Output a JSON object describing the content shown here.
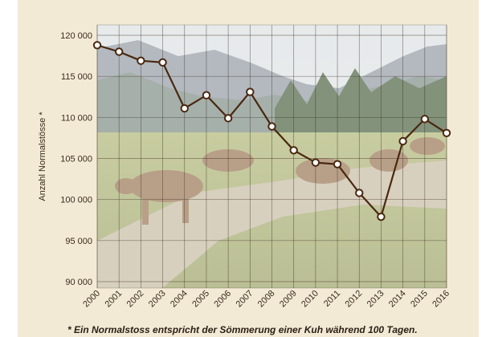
{
  "chart_data": {
    "type": "line",
    "ylabel": "Anzahl Normalstösse *",
    "xlabel": "",
    "ylim": [
      90000,
      120000
    ],
    "yticks": [
      90000,
      95000,
      100000,
      105000,
      110000,
      115000,
      120000
    ],
    "ytick_labels": [
      "90 000",
      "95 000",
      "100 000",
      "105 000",
      "110 000",
      "115 000",
      "120 000"
    ],
    "categories": [
      "2000",
      "2001",
      "2002",
      "2003",
      "2004",
      "2005",
      "2006",
      "2007",
      "2008",
      "2009",
      "2010",
      "2011",
      "2012",
      "2013",
      "2014",
      "2015",
      "2016"
    ],
    "series": [
      {
        "values": [
          118800,
          118000,
          116900,
          116700,
          111100,
          112700,
          109900,
          113100,
          108900,
          106000,
          104500,
          104300,
          100800,
          97900,
          107100,
          109800,
          108100
        ]
      }
    ],
    "grid": true,
    "background": "photo of brown cows on an alpine pasture with mountains",
    "line_color": "#4a2810",
    "marker_fill": "#ffffff"
  },
  "footnote": "* Ein Normalstoss entspricht der Sömmerung einer Kuh während 100 Tagen."
}
